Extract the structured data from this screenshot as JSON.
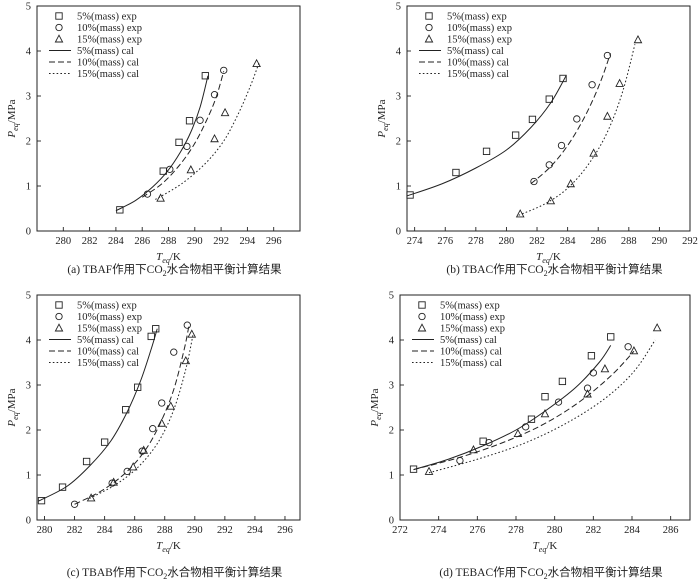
{
  "chart_data": [
    {
      "type": "scatter",
      "caption": "(a) TBAF作用下CO2水合物相平衡计算结果",
      "caption_main": "(a) TBAF作用下CO",
      "caption_sub": "2",
      "caption_rest": "水合物相平衡计算结果",
      "xlabel": "T",
      "xlabel_sub": "eq",
      "xlabel_unit": "/K",
      "ylabel": "P",
      "ylabel_sub": "eq",
      "ylabel_unit": "/MPa",
      "xlim": [
        278,
        298
      ],
      "ylim": [
        0,
        5
      ],
      "xticks": [
        280,
        282,
        284,
        286,
        288,
        290,
        292,
        294,
        296
      ],
      "yticks": [
        0,
        1,
        2,
        3,
        4,
        5
      ],
      "grid": false,
      "legend_position": "top-left",
      "series": [
        {
          "name": "5%(mass) exp",
          "marker": "square",
          "x": [
            284.3,
            287.6,
            288.8,
            289.6,
            290.8
          ],
          "y": [
            0.47,
            1.33,
            1.97,
            2.45,
            3.45
          ]
        },
        {
          "name": "10%(mass) exp",
          "marker": "circle",
          "x": [
            286.4,
            288.1,
            289.4,
            290.4,
            291.5,
            292.2
          ],
          "y": [
            0.82,
            1.37,
            1.88,
            2.46,
            3.03,
            3.57
          ]
        },
        {
          "name": "15%(mass) exp",
          "marker": "triangle",
          "x": [
            287.4,
            289.7,
            291.5,
            292.3,
            294.7
          ],
          "y": [
            0.73,
            1.36,
            2.05,
            2.63,
            3.72
          ]
        },
        {
          "name": "5%(mass) cal",
          "style": "solid",
          "x": [
            284.0,
            285.5,
            286.8,
            287.9,
            288.9,
            289.7,
            290.4,
            291.0
          ],
          "y": [
            0.45,
            0.68,
            0.98,
            1.32,
            1.75,
            2.2,
            2.75,
            3.45
          ]
        },
        {
          "name": "10%(mass) cal",
          "style": "dashed",
          "x": [
            286.0,
            287.5,
            288.8,
            289.9,
            290.8,
            291.6,
            292.2
          ],
          "y": [
            0.75,
            1.05,
            1.45,
            1.9,
            2.4,
            2.95,
            3.55
          ]
        },
        {
          "name": "15%(mass) cal",
          "style": "dotted",
          "x": [
            287.0,
            289.0,
            290.8,
            292.2,
            293.3,
            294.2,
            294.9
          ],
          "y": [
            0.7,
            1.05,
            1.5,
            2.0,
            2.6,
            3.2,
            3.75
          ]
        }
      ]
    },
    {
      "type": "scatter",
      "caption": "(b) TBAC作用下CO2水合物相平衡计算结果",
      "caption_main": "(b) TBAC作用下CO",
      "caption_sub": "2",
      "caption_rest": "水合物相平衡计算结果",
      "xlabel": "T",
      "xlabel_sub": "eq",
      "xlabel_unit": "/K",
      "ylabel": "P",
      "ylabel_sub": "eq",
      "ylabel_unit": "/MPa",
      "xlim": [
        273.5,
        292
      ],
      "ylim": [
        0,
        5
      ],
      "xticks": [
        274,
        276,
        278,
        280,
        282,
        284,
        286,
        288,
        290,
        292
      ],
      "yticks": [
        0,
        1,
        2,
        3,
        4,
        5
      ],
      "grid": false,
      "legend_position": "top-left",
      "series": [
        {
          "name": "5%(mass) exp",
          "marker": "square",
          "x": [
            273.7,
            276.7,
            278.7,
            280.6,
            281.7,
            282.8,
            283.7
          ],
          "y": [
            0.8,
            1.3,
            1.77,
            2.13,
            2.48,
            2.93,
            3.39
          ]
        },
        {
          "name": "10%(mass) exp",
          "marker": "circle",
          "x": [
            281.8,
            282.8,
            283.6,
            284.6,
            285.6,
            286.6
          ],
          "y": [
            1.1,
            1.47,
            1.9,
            2.49,
            3.25,
            3.9
          ]
        },
        {
          "name": "15%(mass) exp",
          "marker": "triangle",
          "x": [
            280.9,
            282.9,
            284.2,
            285.7,
            286.6,
            287.4,
            288.6
          ],
          "y": [
            0.38,
            0.67,
            1.05,
            1.73,
            2.55,
            3.28,
            4.25
          ]
        },
        {
          "name": "5%(mass) cal",
          "style": "solid",
          "x": [
            273.5,
            275.8,
            278.0,
            280.0,
            281.6,
            282.9,
            283.9
          ],
          "y": [
            0.78,
            1.05,
            1.4,
            1.8,
            2.3,
            2.85,
            3.45
          ]
        },
        {
          "name": "10%(mass) cal",
          "style": "dashed",
          "x": [
            281.6,
            282.8,
            283.9,
            284.9,
            285.7,
            286.3,
            286.8
          ],
          "y": [
            1.05,
            1.4,
            1.85,
            2.4,
            2.95,
            3.45,
            3.95
          ]
        },
        {
          "name": "15%(mass) cal",
          "style": "dotted",
          "x": [
            280.8,
            282.5,
            284.0,
            285.4,
            286.6,
            287.6,
            288.4
          ],
          "y": [
            0.35,
            0.6,
            0.95,
            1.5,
            2.2,
            3.1,
            4.15
          ]
        }
      ]
    },
    {
      "type": "scatter",
      "caption": "(c) TBAB作用下CO2水合物相平衡计算结果",
      "caption_main": "(c) TBAB作用下CO",
      "caption_sub": "2",
      "caption_rest": "水合物相平衡计算结果",
      "xlabel": "T",
      "xlabel_sub": "eq",
      "xlabel_unit": "/K",
      "ylabel": "P",
      "ylabel_sub": "eq",
      "ylabel_unit": "/MPa",
      "xlim": [
        279.5,
        297
      ],
      "ylim": [
        0,
        5
      ],
      "xticks": [
        280,
        282,
        284,
        286,
        288,
        290,
        292,
        294,
        296
      ],
      "yticks": [
        0,
        1,
        2,
        3,
        4,
        5
      ],
      "grid": false,
      "legend_position": "top-left",
      "series": [
        {
          "name": "5%(mass) exp",
          "marker": "square",
          "x": [
            279.8,
            281.2,
            282.8,
            284.0,
            285.4,
            286.2,
            287.1,
            287.4
          ],
          "y": [
            0.43,
            0.73,
            1.3,
            1.73,
            2.45,
            2.95,
            4.08,
            4.25
          ]
        },
        {
          "name": "10%(mass) exp",
          "marker": "circle",
          "x": [
            282.0,
            284.5,
            285.5,
            286.5,
            287.2,
            287.8,
            288.6,
            289.5
          ],
          "y": [
            0.35,
            0.82,
            1.08,
            1.53,
            2.03,
            2.6,
            3.73,
            4.33
          ]
        },
        {
          "name": "15%(mass) exp",
          "marker": "triangle",
          "x": [
            283.1,
            284.6,
            285.9,
            286.6,
            287.8,
            288.4,
            289.4,
            289.8
          ],
          "y": [
            0.49,
            0.84,
            1.18,
            1.55,
            2.15,
            2.53,
            3.54,
            4.13
          ]
        },
        {
          "name": "5%(mass) cal",
          "style": "solid",
          "x": [
            279.6,
            281.5,
            283.0,
            284.4,
            285.5,
            286.4,
            287.1,
            287.5
          ],
          "y": [
            0.42,
            0.75,
            1.2,
            1.75,
            2.4,
            3.1,
            3.8,
            4.25
          ]
        },
        {
          "name": "10%(mass) cal",
          "style": "dashed",
          "x": [
            282.0,
            283.8,
            285.4,
            286.7,
            287.7,
            288.6,
            289.3,
            289.6
          ],
          "y": [
            0.35,
            0.65,
            1.05,
            1.55,
            2.15,
            2.9,
            3.8,
            4.3
          ]
        },
        {
          "name": "15%(mass) cal",
          "style": "dotted",
          "x": [
            283.0,
            284.8,
            286.3,
            287.6,
            288.6,
            289.4,
            289.9
          ],
          "y": [
            0.48,
            0.8,
            1.2,
            1.75,
            2.45,
            3.35,
            4.15
          ]
        }
      ]
    },
    {
      "type": "scatter",
      "caption": "(d) TEBAC作用下CO2水合物相平衡计算结果",
      "caption_main": "(d) TEBAC作用下CO",
      "caption_sub": "2",
      "caption_rest": "水合物相平衡计算结果",
      "xlabel": "T",
      "xlabel_sub": "eq",
      "xlabel_unit": "/K",
      "ylabel": "P",
      "ylabel_sub": "eq",
      "ylabel_unit": "/MPa",
      "xlim": [
        272,
        287
      ],
      "ylim": [
        0,
        5
      ],
      "xticks": [
        272,
        274,
        276,
        278,
        280,
        282,
        284,
        286
      ],
      "yticks": [
        0,
        1,
        2,
        3,
        4,
        5
      ],
      "grid": false,
      "legend_position": "top-left",
      "series": [
        {
          "name": "5%(mass) exp",
          "marker": "square",
          "x": [
            272.7,
            276.3,
            278.8,
            279.5,
            280.4,
            281.9,
            282.9
          ],
          "y": [
            1.13,
            1.75,
            2.24,
            2.74,
            3.08,
            3.65,
            4.07
          ]
        },
        {
          "name": "10%(mass) exp",
          "marker": "circle",
          "x": [
            275.1,
            276.6,
            278.5,
            280.2,
            281.7,
            282.0,
            283.8
          ],
          "y": [
            1.32,
            1.72,
            2.07,
            2.62,
            2.93,
            3.27,
            3.85
          ]
        },
        {
          "name": "15%(mass) exp",
          "marker": "triangle",
          "x": [
            273.5,
            275.8,
            278.1,
            279.5,
            281.7,
            282.6,
            284.1,
            285.3
          ],
          "y": [
            1.08,
            1.56,
            1.92,
            2.36,
            2.8,
            3.36,
            3.76,
            4.27
          ]
        },
        {
          "name": "5%(mass) cal",
          "style": "solid",
          "x": [
            272.7,
            274.5,
            276.3,
            278.0,
            279.6,
            281.1,
            282.3,
            282.9
          ],
          "y": [
            1.12,
            1.35,
            1.65,
            2.0,
            2.45,
            2.95,
            3.5,
            3.88
          ]
        },
        {
          "name": "10%(mass) cal",
          "style": "dashed",
          "x": [
            272.7,
            275.0,
            277.2,
            279.3,
            281.2,
            282.9,
            284.1
          ],
          "y": [
            1.12,
            1.38,
            1.7,
            2.1,
            2.6,
            3.2,
            3.75
          ]
        },
        {
          "name": "15%(mass) cal",
          "style": "dotted",
          "x": [
            273.5,
            276.0,
            278.4,
            280.6,
            282.6,
            284.1,
            285.2
          ],
          "y": [
            1.05,
            1.35,
            1.7,
            2.15,
            2.7,
            3.3,
            4.0
          ]
        }
      ]
    }
  ]
}
